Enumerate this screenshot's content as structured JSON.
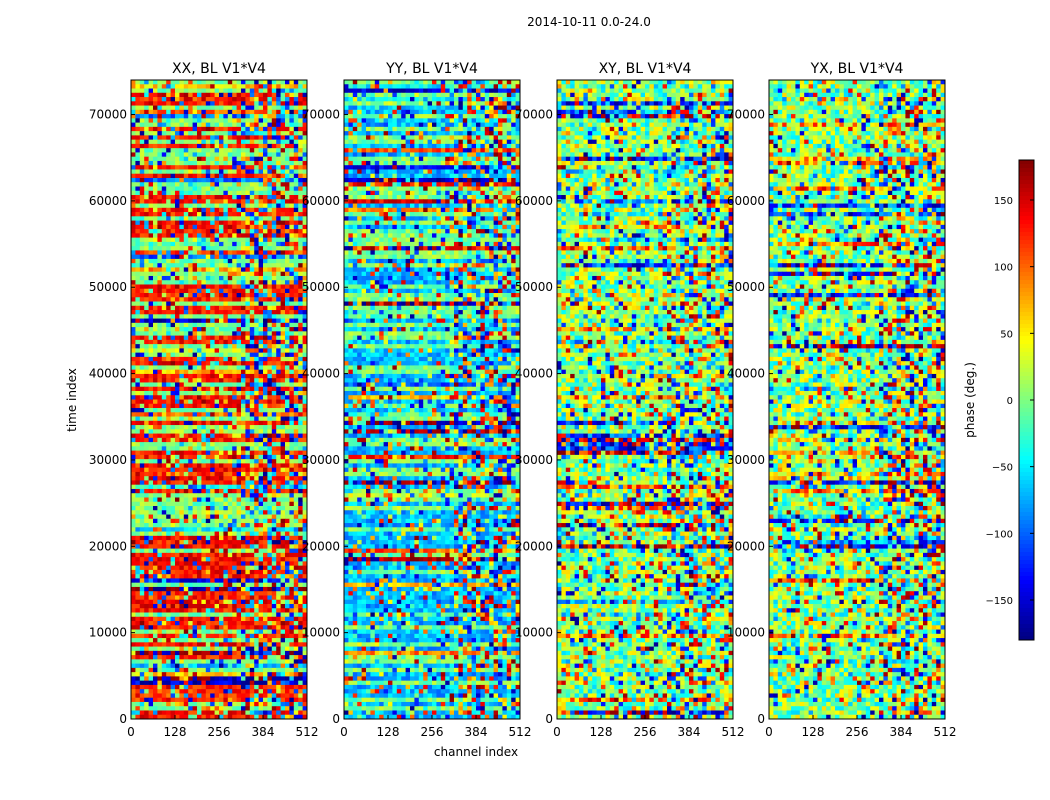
{
  "chart_data": {
    "type": "heatmap",
    "suptitle": "2014-10-11 0.0-24.0",
    "xlabel": "channel index",
    "ylabel": "time index",
    "xlim": [
      0,
      512
    ],
    "ylim": [
      0,
      74000
    ],
    "x_ticks": [
      0,
      128,
      256,
      384,
      512
    ],
    "y_ticks": [
      0,
      10000,
      20000,
      30000,
      40000,
      50000,
      60000,
      70000
    ],
    "panels": [
      {
        "title": "XX, BL V1*V4",
        "dominant_phase": 130,
        "spread": 60
      },
      {
        "title": "YY, BL V1*V4",
        "dominant_phase": -70,
        "spread": 60
      },
      {
        "title": "XY, BL V1*V4",
        "dominant_phase": 0,
        "spread": 120
      },
      {
        "title": "YX, BL V1*V4",
        "dominant_phase": 0,
        "spread": 120
      }
    ],
    "colorbar": {
      "label": "phase (deg.)",
      "range": [
        -180,
        180
      ],
      "ticks": [
        150,
        100,
        50,
        0,
        -50,
        -100,
        -150
      ],
      "colormap": "jet"
    }
  }
}
